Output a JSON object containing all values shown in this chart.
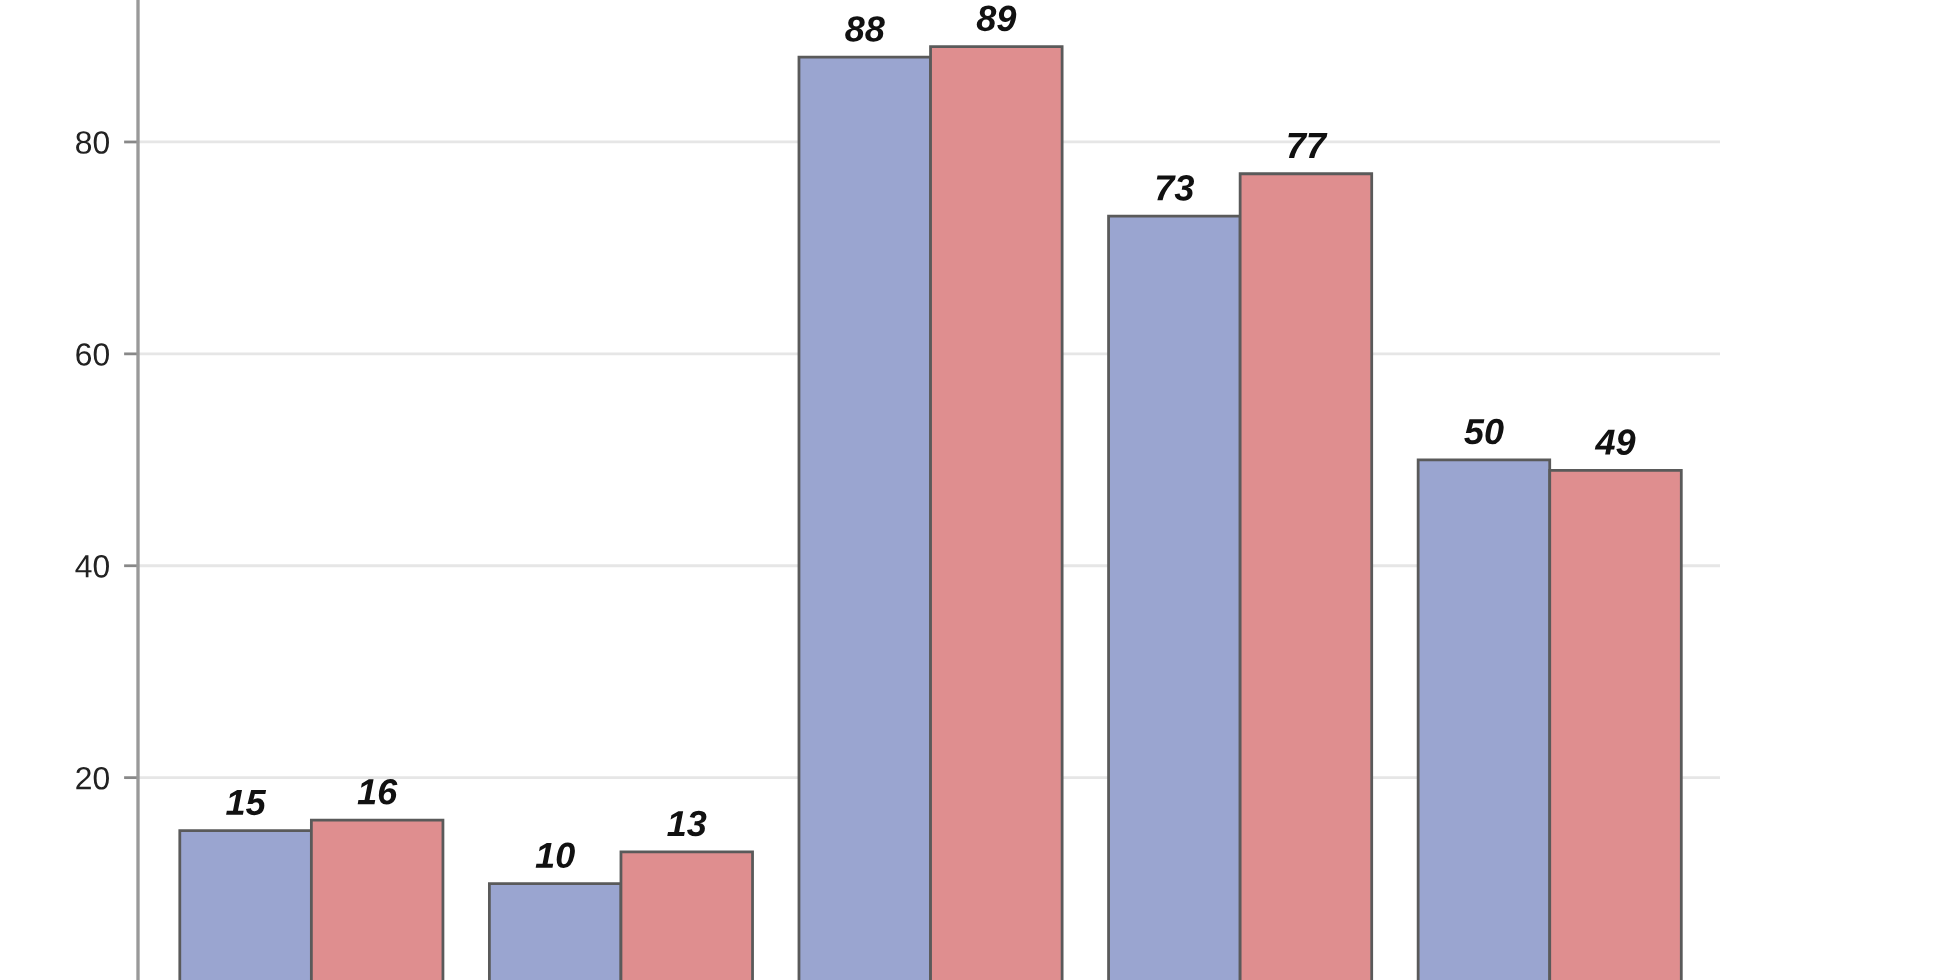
{
  "chart_data": {
    "type": "bar",
    "categories": [
      null,
      null,
      null,
      null,
      null
    ],
    "series": [
      {
        "color": "#9aa5d0",
        "values": [
          15,
          10,
          88,
          73,
          50
        ]
      },
      {
        "color": "#df8e8f",
        "values": [
          16,
          13,
          89,
          77,
          49
        ]
      }
    ],
    "ylim": [
      0.9,
      93.4
    ],
    "yticks": [
      20,
      40,
      60,
      80
    ],
    "grid": "y",
    "data_labels": true,
    "tick_labels": "y"
  }
}
